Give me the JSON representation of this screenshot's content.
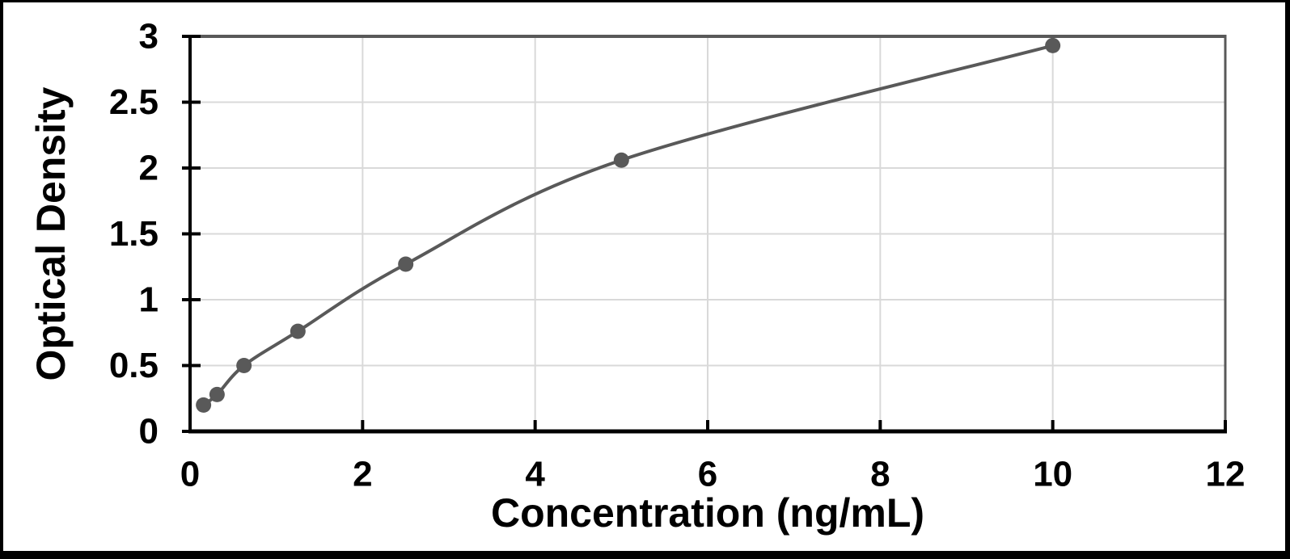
{
  "figure": {
    "background_color": "#ffffff",
    "frame_color": "#000000"
  },
  "chart_data": {
    "type": "scatter",
    "title": "",
    "xlabel": "Concentration (ng/mL)",
    "ylabel": "Optical Density",
    "x": [
      0.156,
      0.313,
      0.625,
      1.25,
      2.5,
      5,
      10
    ],
    "y": [
      0.2,
      0.28,
      0.5,
      0.76,
      1.27,
      2.06,
      2.93
    ],
    "xlim": [
      0,
      12
    ],
    "ylim": [
      0,
      3
    ],
    "x_ticks": [
      0,
      2,
      4,
      6,
      8,
      10,
      12
    ],
    "y_ticks": [
      0,
      0.5,
      1,
      1.5,
      2,
      2.5,
      3
    ],
    "x_tick_labels": [
      "0",
      "2",
      "4",
      "6",
      "8",
      "10",
      "12"
    ],
    "y_tick_labels": [
      "0",
      "0.5",
      "1",
      "1.5",
      "2",
      "2.5",
      "3"
    ],
    "grid": true,
    "legend": "none",
    "curve_style": "smooth-line-with-markers",
    "line_color": "#595959",
    "marker_color": "#595959",
    "gridline_color": "#d9d9d9",
    "axis_color": "#000000",
    "plot_border_color": "#595959"
  }
}
